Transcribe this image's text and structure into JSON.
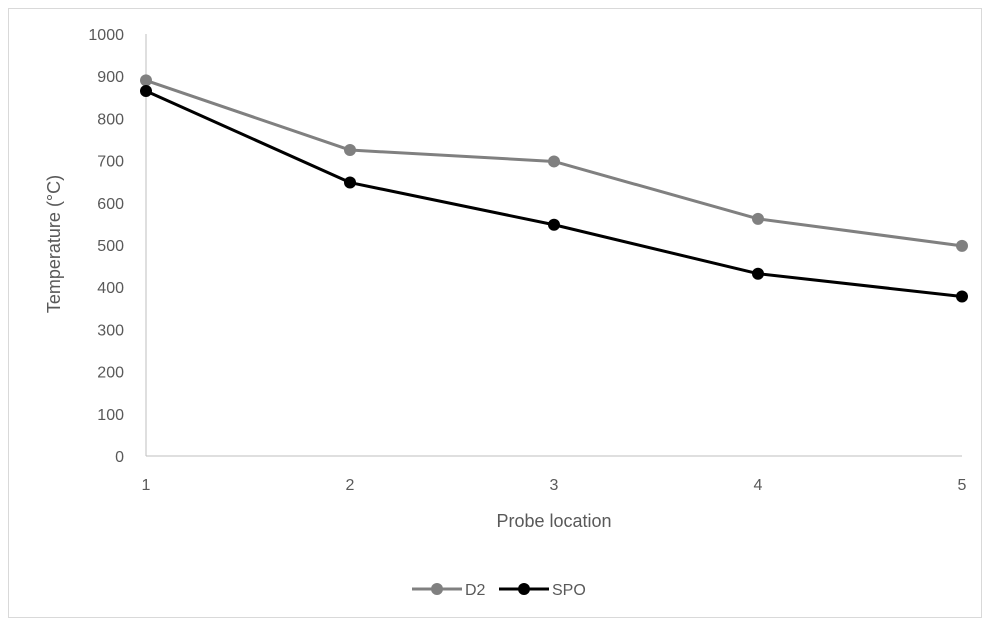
{
  "chart_data": {
    "type": "line",
    "title": "",
    "xlabel": "Probe location",
    "ylabel": "Temperature (°C)",
    "x": [
      1,
      2,
      3,
      4,
      5
    ],
    "xlim": [
      1,
      5
    ],
    "ylim": [
      0,
      1000
    ],
    "yticks": [
      0,
      100,
      200,
      300,
      400,
      500,
      600,
      700,
      800,
      900,
      1000
    ],
    "xtick_labels": [
      "1",
      "2",
      "3",
      "4",
      "5"
    ],
    "ytick_labels": [
      "0",
      "100",
      "200",
      "300",
      "400",
      "500",
      "600",
      "700",
      "800",
      "900",
      "1000"
    ],
    "grid": false,
    "legend_position": "bottom",
    "series": [
      {
        "name": "D2",
        "color": "#808080",
        "values": [
          890,
          725,
          698,
          562,
          498
        ]
      },
      {
        "name": "SPO",
        "color": "#000000",
        "values": [
          865,
          648,
          548,
          432,
          378
        ]
      }
    ]
  }
}
